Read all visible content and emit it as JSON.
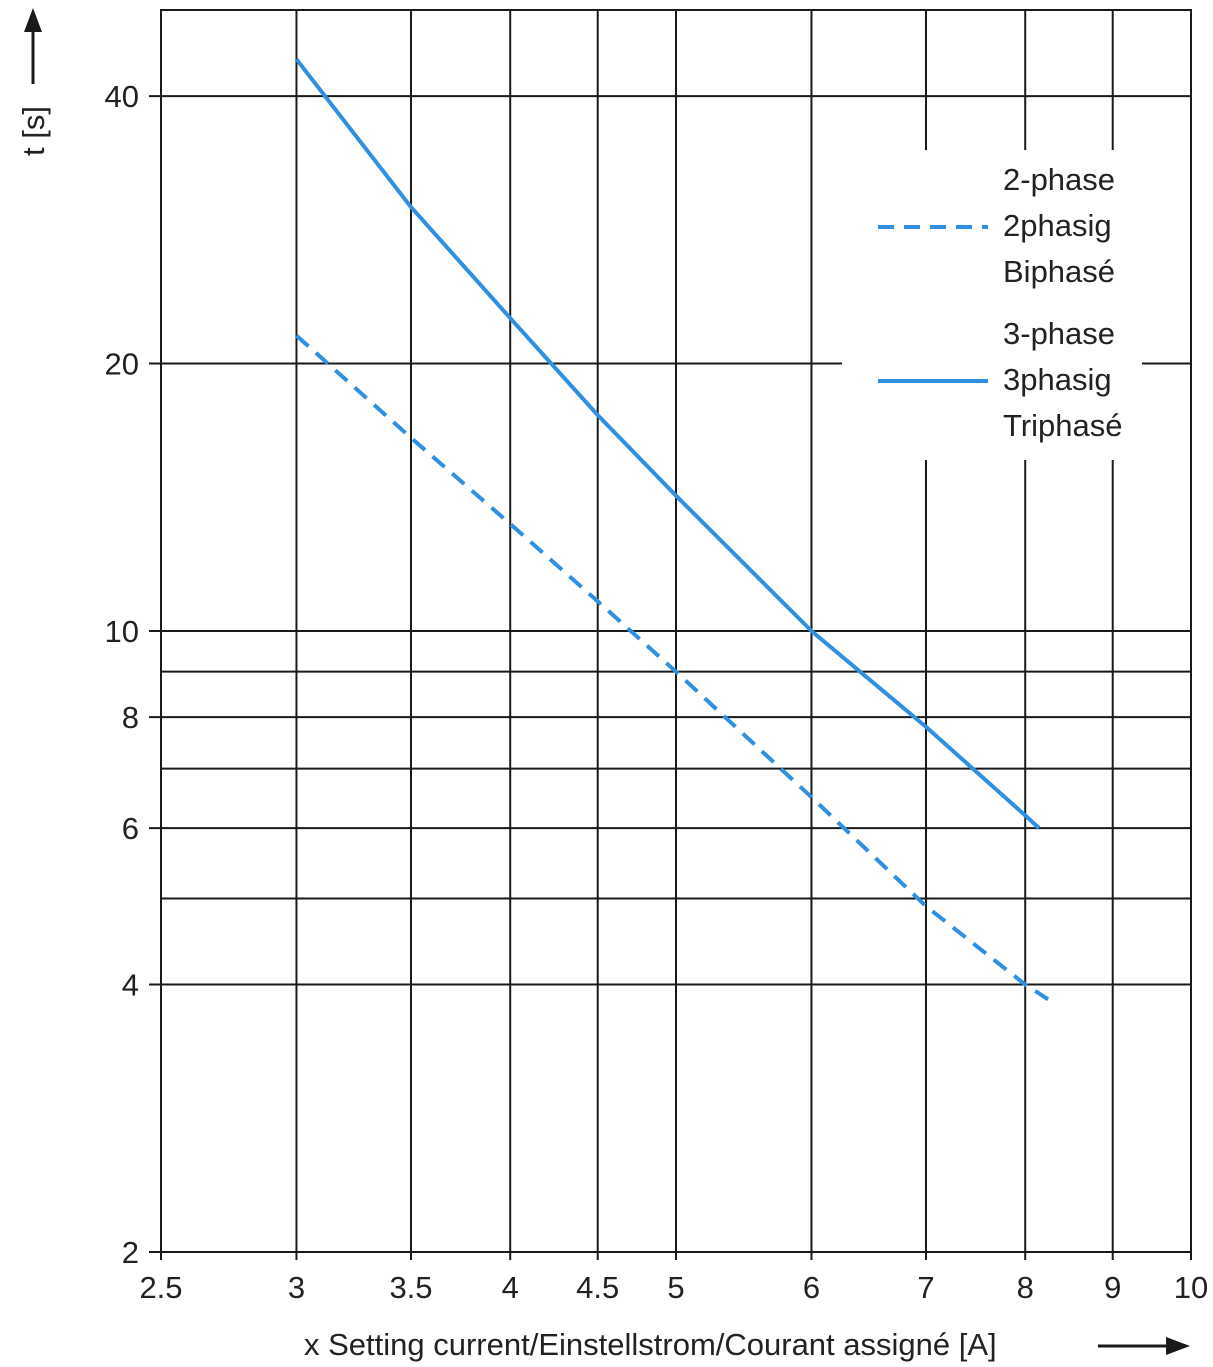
{
  "chart_data": {
    "type": "line",
    "xlabel": "x Setting current/Einstellstrom/Courant assigné [A]",
    "ylabel": "t [s]",
    "x_scale": "log",
    "y_scale": "log",
    "xlim": [
      2.5,
      10
    ],
    "ylim": [
      2,
      50
    ],
    "x_ticks": [
      2.5,
      3,
      3.5,
      4,
      4.5,
      5,
      6,
      7,
      8,
      9,
      10
    ],
    "x_tick_labels": [
      "2.5",
      "3",
      "3.5",
      "4",
      "4.5",
      "5",
      "6",
      "7",
      "8",
      "9",
      "10"
    ],
    "y_ticks": [
      2,
      4,
      6,
      8,
      10,
      20,
      40
    ],
    "y_tick_labels": [
      "2",
      "4",
      "6",
      "8",
      "10",
      "20",
      "40"
    ],
    "y_grid_extra": [
      5,
      7,
      9
    ],
    "grid": true,
    "legend_position": "top-right",
    "series": [
      {
        "name": "2-phase 2phasig Biphasé",
        "labels": [
          "2-phase",
          "2phasig",
          "Biphasé"
        ],
        "style": "dashed",
        "color": "#2f8fe0",
        "x": [
          3,
          3.5,
          4,
          4.5,
          5,
          6,
          7,
          8,
          8.25
        ],
        "y": [
          21.5,
          16.5,
          13.2,
          10.8,
          9.0,
          6.5,
          4.9,
          4.0,
          3.85
        ]
      },
      {
        "name": "3-phase 3phasig Triphasé",
        "labels": [
          "3-phase",
          "3phasig",
          "Triphasé"
        ],
        "style": "solid",
        "color": "#2f8fe0",
        "x": [
          3,
          3.5,
          4,
          4.5,
          5,
          6,
          7,
          8,
          8.15
        ],
        "y": [
          44,
          30,
          22.5,
          17.5,
          14.2,
          10.0,
          7.8,
          6.2,
          6.0
        ]
      }
    ]
  }
}
